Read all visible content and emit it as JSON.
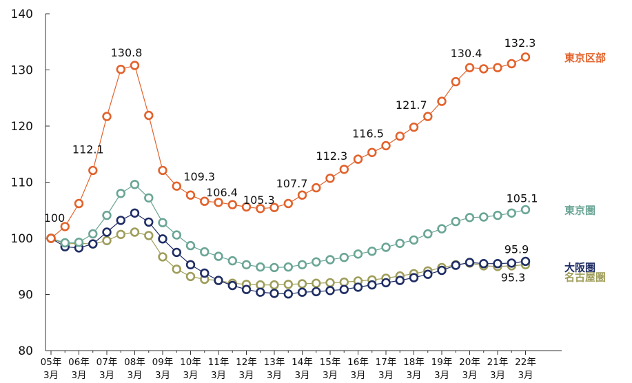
{
  "chart_data": {
    "type": "line",
    "title": "",
    "xlabel": "",
    "ylabel": "",
    "ylim": [
      80,
      140
    ],
    "yticks": [
      "80",
      "90",
      "100",
      "110",
      "120",
      "130",
      "140"
    ],
    "xticks": [
      {
        "year": "05年",
        "month": "3月"
      },
      {
        "year": "06年",
        "month": "3月"
      },
      {
        "year": "07年",
        "month": "3月"
      },
      {
        "year": "08年",
        "month": "3月"
      },
      {
        "year": "09年",
        "month": "3月"
      },
      {
        "year": "10年",
        "month": "3月"
      },
      {
        "year": "11年",
        "month": "3月"
      },
      {
        "year": "12年",
        "month": "3月"
      },
      {
        "year": "13年",
        "month": "3月"
      },
      {
        "year": "14年",
        "month": "3月"
      },
      {
        "year": "15年",
        "month": "3月"
      },
      {
        "year": "16年",
        "month": "3月"
      },
      {
        "year": "17年",
        "month": "3月"
      },
      {
        "year": "18年",
        "month": "3月"
      },
      {
        "year": "19年",
        "month": "3月"
      },
      {
        "year": "20年",
        "month": "3月"
      },
      {
        "year": "21年",
        "month": "3月"
      },
      {
        "year": "22年",
        "month": "3月"
      }
    ],
    "x_step": 0.5,
    "grid": false,
    "series": [
      {
        "name": "東京区部",
        "color": "#e2622b",
        "values": [
          100,
          102.1,
          106.2,
          112.1,
          121.7,
          130.1,
          130.8,
          121.9,
          112.1,
          109.3,
          107.7,
          106.6,
          106.4,
          106.0,
          105.6,
          105.3,
          105.5,
          106.2,
          107.7,
          109.0,
          110.7,
          112.3,
          114.1,
          115.3,
          116.5,
          118.2,
          119.8,
          121.7,
          124.4,
          127.9,
          130.4,
          130.2,
          130.4,
          131.1,
          132.3
        ]
      },
      {
        "name": "東京圏",
        "color": "#6aa595",
        "values": [
          100,
          99.2,
          99.3,
          100.8,
          104.1,
          108.0,
          109.6,
          107.2,
          102.8,
          100.6,
          98.7,
          97.6,
          96.8,
          96.0,
          95.3,
          94.9,
          94.8,
          94.9,
          95.3,
          95.8,
          96.2,
          96.6,
          97.2,
          97.7,
          98.4,
          99.1,
          99.7,
          100.8,
          101.7,
          103.0,
          103.7,
          103.8,
          104.1,
          104.5,
          105.1
        ]
      },
      {
        "name": "大阪圏",
        "color": "#1f2d64",
        "values": [
          100,
          98.5,
          98.3,
          99.0,
          101.1,
          103.2,
          104.5,
          102.9,
          99.9,
          97.5,
          95.3,
          93.8,
          92.5,
          91.6,
          90.9,
          90.4,
          90.2,
          90.1,
          90.4,
          90.5,
          90.7,
          90.9,
          91.3,
          91.7,
          92.1,
          92.5,
          93.0,
          93.6,
          94.3,
          95.2,
          95.7,
          95.5,
          95.5,
          95.6,
          95.9
        ]
      },
      {
        "name": "名古屋圏",
        "color": "#9e9d59",
        "values": [
          100,
          99.0,
          99.1,
          99.0,
          99.6,
          100.7,
          101.1,
          100.5,
          96.7,
          94.5,
          93.2,
          92.7,
          92.5,
          92.0,
          91.8,
          91.7,
          91.7,
          91.8,
          91.9,
          92.0,
          92.1,
          92.2,
          92.4,
          92.6,
          92.9,
          93.3,
          93.7,
          94.2,
          94.8,
          95.3,
          95.6,
          95.1,
          95.0,
          95.1,
          95.3
        ]
      }
    ],
    "annotations": [
      {
        "series": 0,
        "index": 0,
        "text": "100"
      },
      {
        "series": 0,
        "index": 3,
        "text": "112.1"
      },
      {
        "series": 0,
        "index": 6,
        "text": "130.8"
      },
      {
        "series": 0,
        "index": 9,
        "text": "109.3"
      },
      {
        "series": 0,
        "index": 12,
        "text": "106.4"
      },
      {
        "series": 0,
        "index": 15,
        "text": "105.3"
      },
      {
        "series": 0,
        "index": 18,
        "text": "107.7"
      },
      {
        "series": 0,
        "index": 21,
        "text": "112.3"
      },
      {
        "series": 0,
        "index": 24,
        "text": "116.5"
      },
      {
        "series": 0,
        "index": 27,
        "text": "121.7"
      },
      {
        "series": 0,
        "index": 30,
        "text": "130.4"
      },
      {
        "series": 0,
        "index": 34,
        "text": "132.3"
      },
      {
        "series": 1,
        "index": 34,
        "text": "105.1"
      },
      {
        "series": 2,
        "index": 34,
        "text": "95.9"
      },
      {
        "series": 3,
        "index": 34,
        "text": "95.3"
      }
    ]
  }
}
